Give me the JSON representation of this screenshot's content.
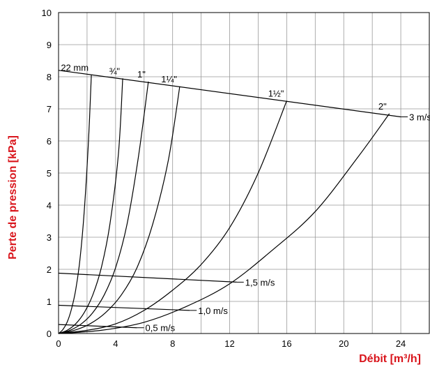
{
  "chart_data": {
    "type": "line",
    "xlabel": "Débit [m³/h]",
    "ylabel": "Perte de pression [kPa]",
    "xlim": [
      0,
      26
    ],
    "ylim": [
      0,
      10
    ],
    "x_ticks": [
      "0",
      "4",
      "8",
      "12",
      "16",
      "20",
      "24"
    ],
    "y_ticks": [
      "0",
      "1",
      "2",
      "3",
      "4",
      "5",
      "6",
      "7",
      "8",
      "9",
      "10"
    ],
    "grid": true,
    "colors": {
      "axis_title": "#d9141b",
      "grid": "#999999",
      "lines": "#000000"
    },
    "pipe_series": [
      {
        "name": "22 mm",
        "x": [
          0,
          0.3,
          0.6,
          0.9,
          1.2,
          1.5,
          1.8,
          2.1,
          2.3
        ],
        "y": [
          0,
          0.12,
          0.35,
          0.75,
          1.35,
          2.3,
          3.8,
          6.0,
          8.05
        ]
      },
      {
        "name": "¾\"",
        "x": [
          0,
          0.6,
          1.2,
          1.8,
          2.4,
          3.0,
          3.6,
          4.2,
          4.5
        ],
        "y": [
          0,
          0.1,
          0.3,
          0.65,
          1.2,
          2.05,
          3.4,
          5.6,
          7.95
        ]
      },
      {
        "name": "1\"",
        "x": [
          0,
          0.8,
          1.6,
          2.4,
          3.2,
          4.0,
          4.8,
          5.6,
          6.3
        ],
        "y": [
          0,
          0.1,
          0.3,
          0.65,
          1.2,
          2.05,
          3.4,
          5.5,
          7.85
        ]
      },
      {
        "name": "1¼\"",
        "x": [
          0,
          1.1,
          2.2,
          3.3,
          4.4,
          5.5,
          6.6,
          7.7,
          8.5
        ],
        "y": [
          0,
          0.1,
          0.3,
          0.65,
          1.2,
          2.05,
          3.4,
          5.4,
          7.7
        ]
      },
      {
        "name": "1½\"",
        "x": [
          0,
          2,
          4,
          6,
          8,
          10,
          12,
          14,
          16
        ],
        "y": [
          0,
          0.1,
          0.3,
          0.72,
          1.35,
          2.15,
          3.3,
          5.0,
          7.25
        ]
      },
      {
        "name": "2\"",
        "x": [
          0,
          3,
          6,
          9,
          12,
          15,
          18,
          21,
          23.2
        ],
        "y": [
          0,
          0.1,
          0.35,
          0.85,
          1.55,
          2.6,
          3.8,
          5.5,
          6.85
        ]
      }
    ],
    "velocity_series": [
      {
        "name": "0,5 m/s",
        "x": [
          0,
          5.5
        ],
        "y": [
          0.28,
          0.18
        ]
      },
      {
        "name": "1,0 m/s",
        "x": [
          0,
          9.2
        ],
        "y": [
          0.88,
          0.72
        ]
      },
      {
        "name": "1,5 m/s",
        "x": [
          0,
          12.5
        ],
        "y": [
          1.88,
          1.6
        ]
      },
      {
        "name": "3 m/s",
        "x": [
          0,
          24.0
        ],
        "y": [
          8.2,
          6.75
        ]
      }
    ]
  }
}
